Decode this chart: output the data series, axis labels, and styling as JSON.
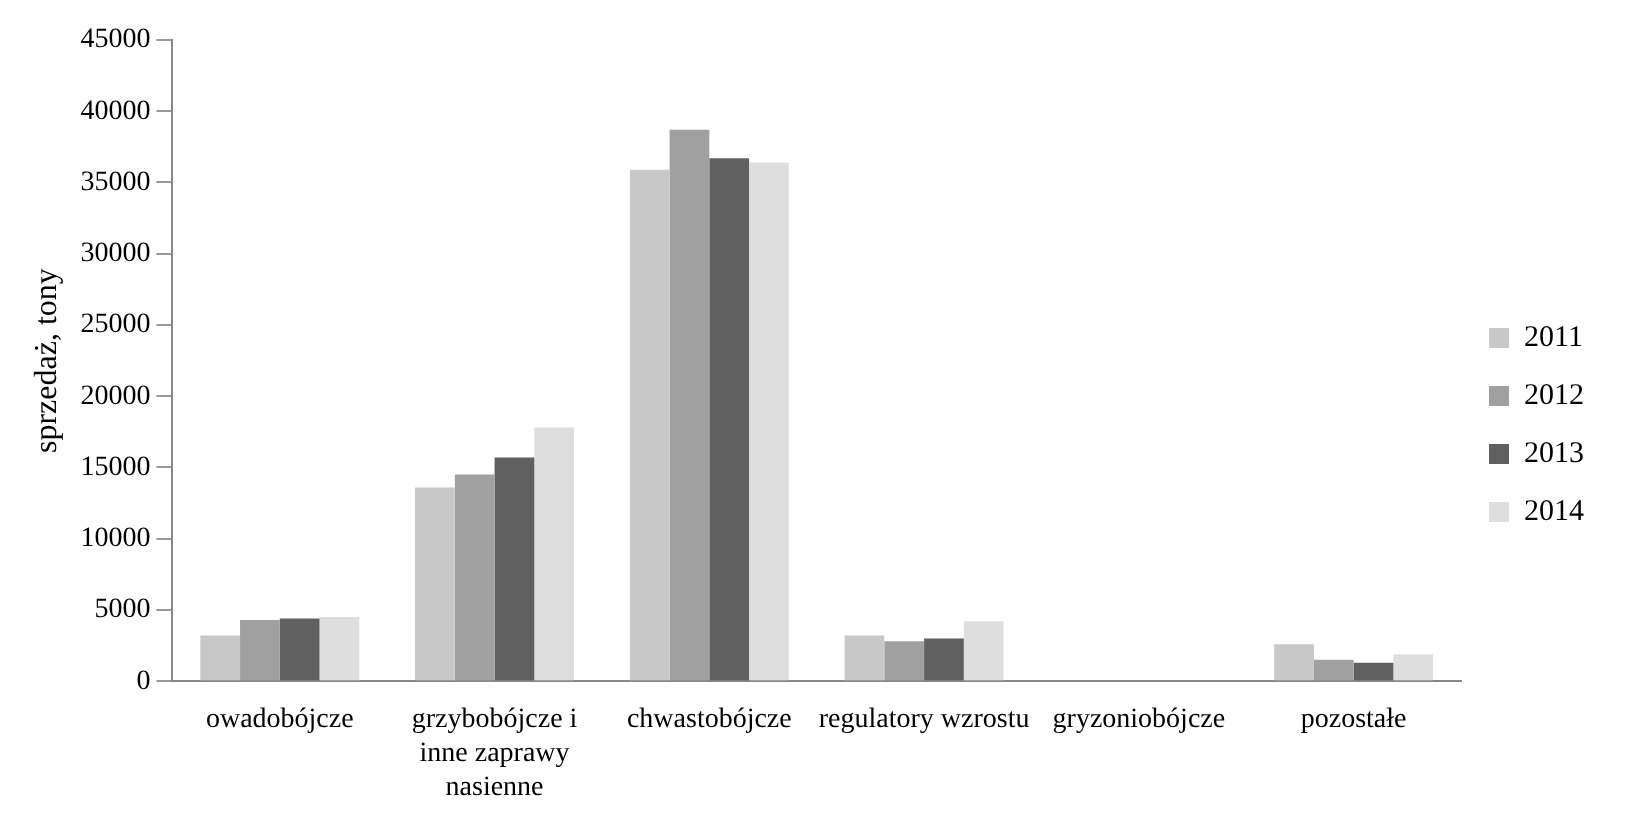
{
  "chart_data": {
    "type": "bar",
    "ylabel": "sprzedaż, tony",
    "categories": [
      "owadobójcze",
      "grzybobójcze i inne zaprawy nasienne",
      "chwastobójcze",
      "regulatory wzrostu",
      "gryzoniobójcze",
      "pozostałe"
    ],
    "series": [
      {
        "name": "2011",
        "color": "#c8c8c8",
        "values": [
          3200,
          13600,
          35900,
          3200,
          0,
          2600
        ]
      },
      {
        "name": "2012",
        "color": "#a0a0a0",
        "values": [
          4300,
          14500,
          38700,
          2800,
          0,
          1500
        ]
      },
      {
        "name": "2013",
        "color": "#606060",
        "values": [
          4400,
          15700,
          36700,
          3000,
          0,
          1300
        ]
      },
      {
        "name": "2014",
        "color": "#dedede",
        "values": [
          4500,
          17800,
          36400,
          4200,
          0,
          1900
        ]
      }
    ],
    "ylim": [
      0,
      45000
    ],
    "yticks": [
      0,
      5000,
      10000,
      15000,
      20000,
      25000,
      30000,
      35000,
      40000,
      45000
    ],
    "grid": false,
    "legend": "right"
  }
}
